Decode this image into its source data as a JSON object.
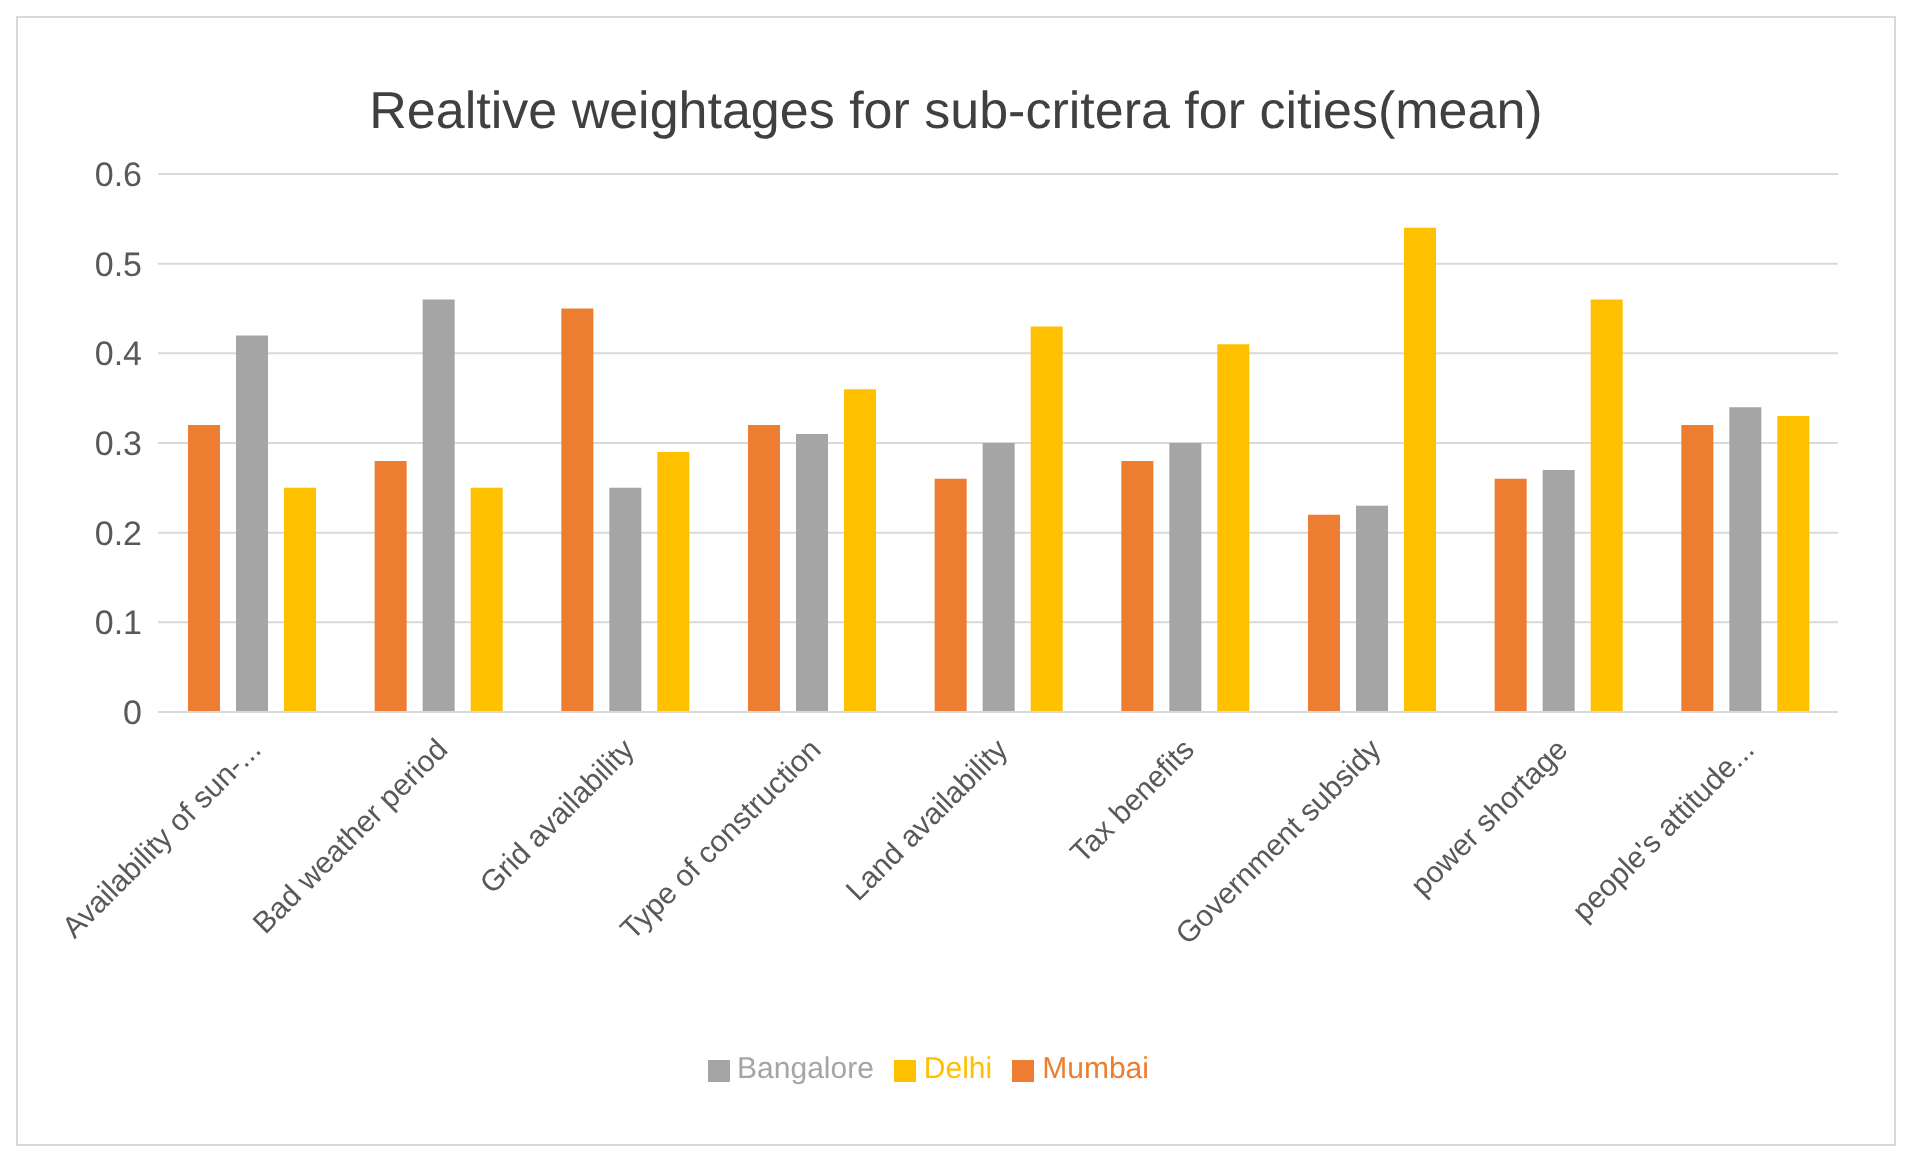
{
  "chart_data": {
    "type": "bar",
    "title": "Realtive weightages for sub-critera for cities(mean)",
    "categories": [
      "Availability of sun-...",
      "Bad weather period",
      "Grid availability",
      "Type of construction",
      "Land availability",
      "Tax benefits",
      "Government subsidy",
      "power shortage",
      "people's attitude..."
    ],
    "series": [
      {
        "name": "Mumbai",
        "color": "#ed7d31",
        "values": [
          0.32,
          0.28,
          0.45,
          0.32,
          0.26,
          0.28,
          0.22,
          0.26,
          0.32
        ]
      },
      {
        "name": "Bangalore",
        "color": "#a5a5a5",
        "values": [
          0.42,
          0.46,
          0.25,
          0.31,
          0.3,
          0.3,
          0.23,
          0.27,
          0.34
        ]
      },
      {
        "name": "Delhi",
        "color": "#ffc000",
        "values": [
          0.25,
          0.25,
          0.29,
          0.36,
          0.43,
          0.41,
          0.54,
          0.46,
          0.33
        ]
      }
    ],
    "ylim": [
      0,
      0.6
    ],
    "yticks": [
      0,
      0.1,
      0.2,
      0.3,
      0.4,
      0.5,
      0.6
    ],
    "grid": "y",
    "legend": "bottom"
  }
}
